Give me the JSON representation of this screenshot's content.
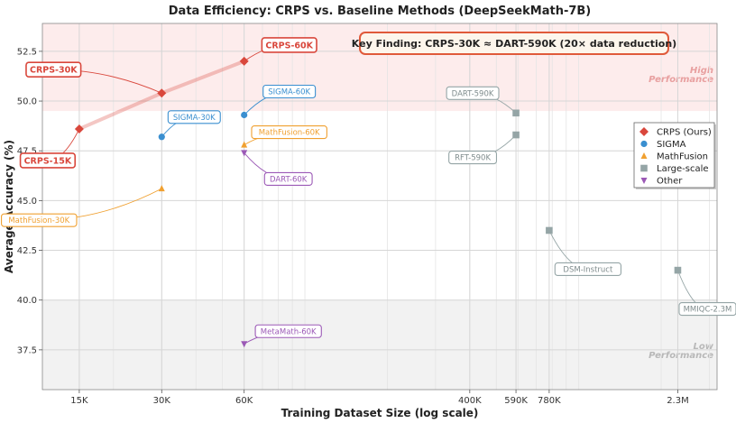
{
  "chart_data": {
    "type": "scatter",
    "title": "Data Efficiency: CRPS vs. Baseline Methods (DeepSeekMath-7B)",
    "xlabel": "Training Dataset Size (log scale)",
    "ylabel": "Average Accuracy (%)",
    "x_scale": "log",
    "xlim": [
      11000,
      3200000
    ],
    "ylim": [
      35.5,
      53.9
    ],
    "x_ticks": [
      15000,
      30000,
      60000,
      400000,
      590000,
      780000,
      2300000
    ],
    "x_tick_labels": [
      "15K",
      "30K",
      "60K",
      "400K",
      "590K",
      "780K",
      "2.3M"
    ],
    "y_ticks": [
      37.5,
      40.0,
      42.5,
      45.0,
      47.5,
      50.0,
      52.5
    ],
    "y_tick_labels": [
      "37.5",
      "40.0",
      "42.5",
      "45.0",
      "47.5",
      "50.0",
      "52.5"
    ],
    "grid": true,
    "legend_position": "right",
    "bands": [
      {
        "label": [
          "High",
          "Performance"
        ],
        "y_range": [
          49.5,
          53.9
        ],
        "color": "#fdecec",
        "text_color": "#e8a0a0"
      },
      {
        "label": [
          "Low",
          "Performance"
        ],
        "y_range": [
          35.5,
          40.0
        ],
        "color": "#f2f2f2",
        "text_color": "#b8b8b8"
      }
    ],
    "series": [
      {
        "name": "CRPS (Ours)",
        "marker": "diamond",
        "color": "#d9473c",
        "connected": true,
        "points": [
          {
            "x": 15000,
            "y": 48.6,
            "label": "CRPS-15K"
          },
          {
            "x": 30000,
            "y": 50.4,
            "label": "CRPS-30K"
          },
          {
            "x": 60000,
            "y": 52.0,
            "label": "CRPS-60K"
          }
        ]
      },
      {
        "name": "SIGMA",
        "marker": "circle",
        "color": "#3a8fd0",
        "points": [
          {
            "x": 30000,
            "y": 48.2,
            "label": "SIGMA-30K"
          },
          {
            "x": 60000,
            "y": 49.3,
            "label": "SIGMA-60K"
          }
        ]
      },
      {
        "name": "MathFusion",
        "marker": "triangle-up",
        "color": "#f0a030",
        "points": [
          {
            "x": 30000,
            "y": 45.6,
            "label": "MathFusion-30K"
          },
          {
            "x": 60000,
            "y": 47.8,
            "label": "MathFusion-60K"
          }
        ]
      },
      {
        "name": "Large-scale",
        "marker": "square",
        "color": "#95a5a6",
        "points": [
          {
            "x": 590000,
            "y": 49.4,
            "label": "DART-590K"
          },
          {
            "x": 590000,
            "y": 48.3,
            "label": "RFT-590K"
          },
          {
            "x": 780000,
            "y": 43.5,
            "label": "DSM-Instruct"
          },
          {
            "x": 2300000,
            "y": 41.5,
            "label": "MMIQC-2.3M"
          }
        ]
      },
      {
        "name": "Other",
        "marker": "triangle-down",
        "color": "#9b59b6",
        "points": [
          {
            "x": 60000,
            "y": 47.4,
            "label": "DART-60K"
          },
          {
            "x": 60000,
            "y": 37.8,
            "label": "MetaMath-60K"
          }
        ]
      }
    ],
    "key_finding": "Key Finding: CRPS-30K ≈ DART-590K (20× data reduction)"
  }
}
